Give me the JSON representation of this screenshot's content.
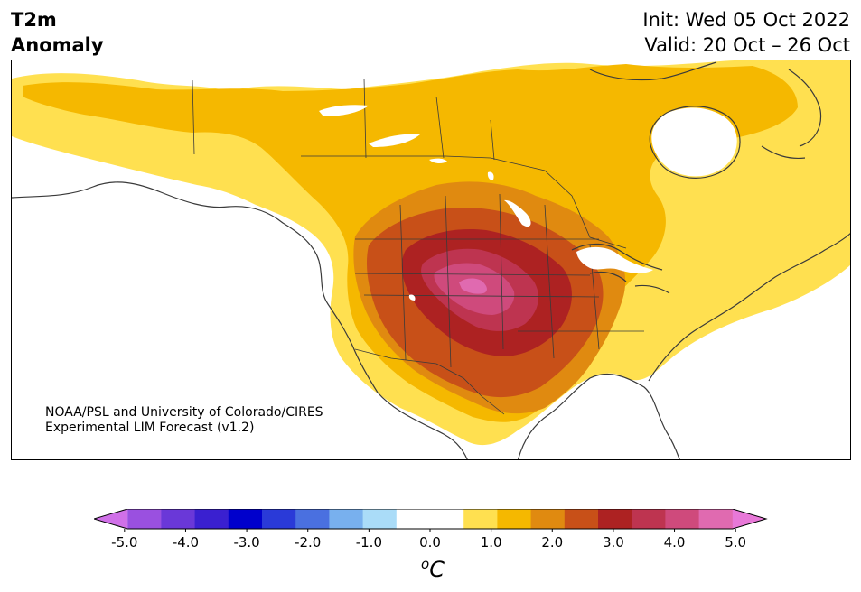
{
  "header": {
    "title_line1": "T2m",
    "title_line2": "Anomaly",
    "init": "Init: Wed 05 Oct 2022",
    "valid": "Valid: 20 Oct – 26 Oct"
  },
  "map": {
    "region": "North America",
    "shown_levels": [
      0.5,
      1.0,
      1.5,
      2.0,
      2.5,
      3.0,
      3.5,
      4.0
    ],
    "credit_line1": "NOAA/PSL and University of Colorado/CIRES",
    "credit_line2": "Experimental LIM Forecast (v1.2)"
  },
  "colorbar": {
    "unit_base": "C",
    "unit_sup": "o",
    "tick_labels": [
      "-5.0",
      "-4.0",
      "-3.0",
      "-2.0",
      "-1.0",
      "0.0",
      "1.0",
      "2.0",
      "3.0",
      "4.0",
      "5.0"
    ],
    "ticks": [
      -5,
      -4,
      -3,
      -2,
      -1,
      0,
      1,
      2,
      3,
      4,
      5
    ],
    "range": [
      -5.5,
      5.5
    ],
    "colors": [
      "#d070e8",
      "#9a50e0",
      "#6a38d8",
      "#3a20d0",
      "#0000cc",
      "#2a3ad8",
      "#4a70e0",
      "#78b0ee",
      "#aadcf8",
      "#ffffff",
      "#ffffff",
      "#ffe050",
      "#f5b800",
      "#e08a10",
      "#c85018",
      "#ad2222",
      "#be3450",
      "#cf4a7c",
      "#e06ab0",
      "#e878d8"
    ]
  }
}
